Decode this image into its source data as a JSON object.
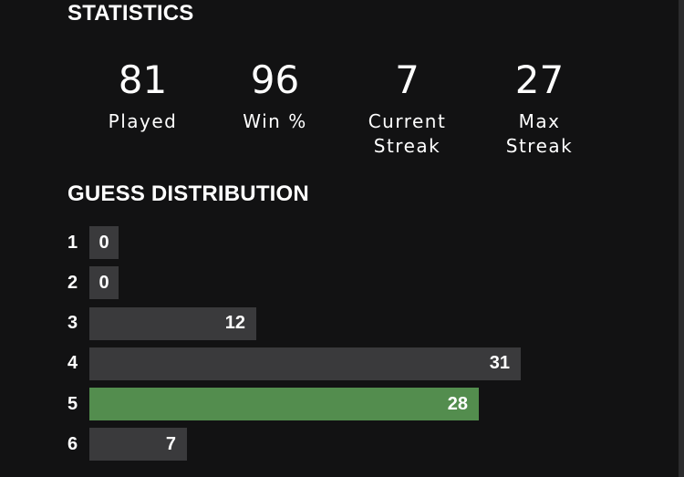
{
  "statistics": {
    "heading": "STATISTICS",
    "items": [
      {
        "value": "81",
        "label": "Played"
      },
      {
        "value": "96",
        "label": "Win %"
      },
      {
        "value": "7",
        "label": "Current\nStreak"
      },
      {
        "value": "27",
        "label": "Max\nStreak"
      }
    ]
  },
  "distribution": {
    "heading": "GUESS DISTRIBUTION",
    "max_value": 31,
    "rows": [
      {
        "guess": "1",
        "count": 0,
        "highlight": false
      },
      {
        "guess": "2",
        "count": 0,
        "highlight": false
      },
      {
        "guess": "3",
        "count": 12,
        "highlight": false
      },
      {
        "guess": "4",
        "count": 31,
        "highlight": false
      },
      {
        "guess": "5",
        "count": 28,
        "highlight": true
      },
      {
        "guess": "6",
        "count": 7,
        "highlight": false
      }
    ]
  },
  "colors": {
    "background": "#121213",
    "bar": "#3a3a3c",
    "bar_highlight": "#538d4e",
    "text": "#ffffff"
  }
}
